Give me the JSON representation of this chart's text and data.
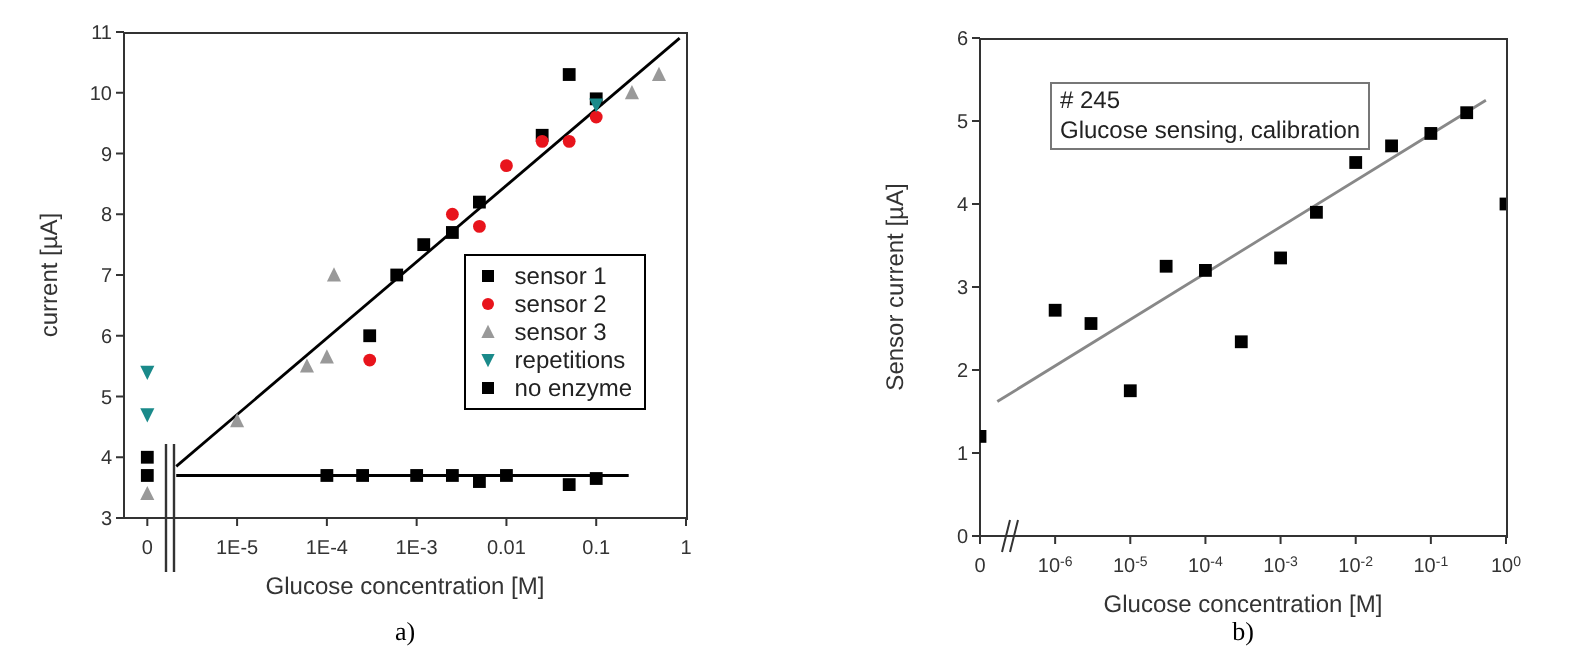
{
  "chart_data": [
    {
      "type": "scatter",
      "xlabel": "Glucose concentration [M]",
      "ylabel": "current [µA]",
      "log": "x",
      "legend": "bottom right",
      "xlim": [
        5.5e-07,
        1
      ],
      "ylim": [
        3,
        11
      ],
      "xticks": [
        {
          "value": 1e-06,
          "label": "0"
        },
        {
          "value": 1e-05,
          "label": "1E-5"
        },
        {
          "value": 0.0001,
          "label": "1E-4"
        },
        {
          "value": 0.001,
          "label": "1E-3"
        },
        {
          "value": 0.01,
          "label": "0.01"
        },
        {
          "value": 0.1,
          "label": "0.1"
        },
        1
      ],
      "yticks": [
        3,
        4,
        5,
        6,
        7,
        8,
        9,
        10,
        11
      ],
      "annotations": [
        "a)"
      ],
      "series": [
        {
          "name": "sensor 1",
          "color": "#000000",
          "marker": "square",
          "x": [
            1e-06,
            0.0003,
            0.0006,
            0.0012,
            0.0025,
            0.005,
            0.025,
            0.05,
            0.1
          ],
          "values": [
            4.0,
            6.0,
            7.0,
            7.5,
            7.7,
            8.2,
            9.3,
            10.3,
            9.9
          ]
        },
        {
          "name": "sensor 2",
          "color": "#e8141c",
          "marker": "circle",
          "x": [
            0.0003,
            0.0025,
            0.005,
            0.01,
            0.025,
            0.05,
            0.1
          ],
          "values": [
            5.6,
            8.0,
            7.8,
            8.8,
            9.2,
            9.2,
            9.6
          ]
        },
        {
          "name": "sensor 3",
          "color": "#999999",
          "marker": "triangle",
          "x": [
            1e-06,
            1e-05,
            6e-05,
            0.0001,
            0.00012,
            0.25,
            0.5
          ],
          "values": [
            3.4,
            4.6,
            5.5,
            5.65,
            7.0,
            10.0,
            10.3
          ]
        },
        {
          "name": "repetitions",
          "color": "#1a8a8a",
          "marker": "triangle-down",
          "x": [
            1e-06,
            1e-06,
            0.1
          ],
          "values": [
            5.4,
            4.7,
            9.8
          ]
        },
        {
          "name": "no enzyme",
          "color": "#000000",
          "marker": "square",
          "x": [
            1e-06,
            0.0001,
            0.00025,
            0.001,
            0.0025,
            0.005,
            0.01,
            0.05,
            0.1
          ],
          "values": [
            3.7,
            3.7,
            3.7,
            3.7,
            3.7,
            3.6,
            3.7,
            3.55,
            3.65
          ]
        },
        {
          "type": "line",
          "color": "#000000",
          "x": [
            2.1e-06,
            0.85
          ],
          "values": [
            3.85,
            10.9
          ]
        },
        {
          "type": "line",
          "color": "#000000",
          "x": [
            2.1e-06,
            0.23
          ],
          "values": [
            3.7,
            3.7
          ]
        }
      ]
    },
    {
      "type": "scatter",
      "xlabel": "Glucose concentration [M]",
      "ylabel": "Sensor current [µA]",
      "log": "x",
      "xlim": [
        1e-07,
        1
      ],
      "ylim": [
        0,
        6
      ],
      "xticks": [
        {
          "value": 1e-07,
          "label": "0"
        },
        {
          "value": 1e-06,
          "label": "10$^{-6}$"
        },
        {
          "value": 1e-05,
          "label": "10$^{-5}$"
        },
        {
          "value": 0.0001,
          "label": "10$^{-4}$"
        },
        {
          "value": 0.001,
          "label": "10$^{-3}$"
        },
        {
          "value": 0.01,
          "label": "10$^{-2}$"
        },
        {
          "value": 0.1,
          "label": "10$^{-1}$"
        },
        {
          "value": 1,
          "label": "10$^{0}$"
        }
      ],
      "yticks": [
        0,
        1,
        2,
        3,
        4,
        5,
        6
      ],
      "annotations": [
        "# 245",
        "Glucose sensing, calibration",
        "b)"
      ],
      "series": [
        {
          "color": "#000000",
          "marker": "square",
          "x": [
            1e-07,
            1e-06,
            3e-06,
            1e-05,
            3e-05,
            0.0001,
            0.0003,
            0.001,
            0.003,
            0.01,
            0.03,
            0.1,
            0.3,
            1
          ],
          "values": [
            1.2,
            2.72,
            2.56,
            1.75,
            3.25,
            3.2,
            2.34,
            3.35,
            3.9,
            4.5,
            4.7,
            4.85,
            5.1,
            4.0
          ]
        },
        {
          "type": "line",
          "color": "#888888",
          "x": [
            1.7e-07,
            0.54
          ],
          "values": [
            1.62,
            5.25
          ]
        }
      ]
    }
  ]
}
